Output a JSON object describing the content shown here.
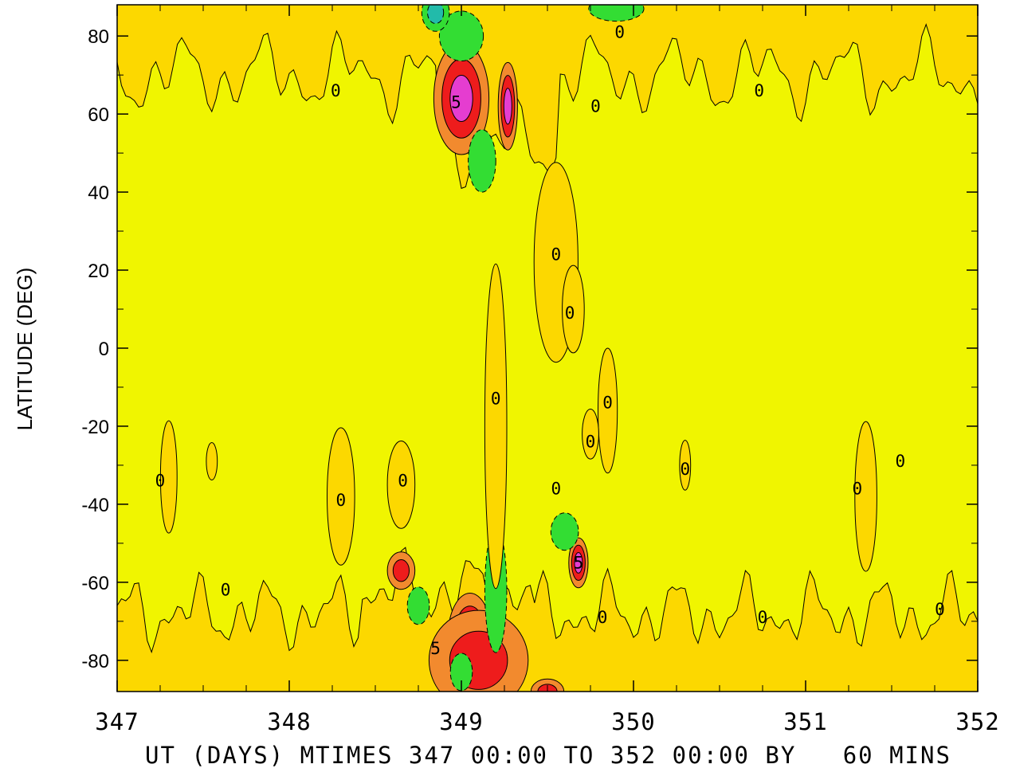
{
  "chart_data": {
    "type": "heatmap",
    "subtype": "filled-contour",
    "title": "",
    "xlabel": "UT (DAYS) MTIMES 347 00:00 TO 352 00:00 BY   60 MINS",
    "ylabel": "LATITUDE (DEG)",
    "xlim": [
      347,
      352
    ],
    "ylim": [
      -88,
      88
    ],
    "x_ticks": [
      347,
      348,
      349,
      350,
      351,
      352
    ],
    "y_ticks": [
      80,
      60,
      40,
      20,
      0,
      -20,
      -40,
      -60,
      -80
    ],
    "y_tick_labels": [
      "80",
      "60",
      "40",
      "20",
      "0",
      "-20",
      "-40",
      "-60",
      "-80"
    ],
    "x_tick_labels": [
      "347",
      "348",
      "349",
      "350",
      "351",
      "352"
    ],
    "background_level_color": "#f0f500",
    "contour_fill_colors": {
      "low_positive": "#fcd800",
      "mid_positive": "#f28a2e",
      "high_positive": "#ee1c1c",
      "peak_positive": "#e53dd0",
      "dark_core": "#8b0a28",
      "negative": "#33dd33",
      "strong_negative": "#22bbaa"
    },
    "contour_labels": [
      {
        "text": "0",
        "x": 347.25,
        "y": -34
      },
      {
        "text": "0",
        "x": 347.63,
        "y": -62
      },
      {
        "text": "0",
        "x": 348.3,
        "y": -39
      },
      {
        "text": "0",
        "x": 348.66,
        "y": -34
      },
      {
        "text": "0",
        "x": 349.92,
        "y": 81
      },
      {
        "text": "0",
        "x": 348.27,
        "y": 66
      },
      {
        "text": "5",
        "x": 348.97,
        "y": 63
      },
      {
        "text": "0",
        "x": 349.78,
        "y": 62
      },
      {
        "text": "0",
        "x": 350.73,
        "y": 66
      },
      {
        "text": "0",
        "x": 349.55,
        "y": 24
      },
      {
        "text": "0",
        "x": 349.63,
        "y": 9
      },
      {
        "text": "0",
        "x": 349.2,
        "y": -13
      },
      {
        "text": "0",
        "x": 349.85,
        "y": -14
      },
      {
        "text": "0",
        "x": 349.75,
        "y": -24
      },
      {
        "text": "0",
        "x": 350.3,
        "y": -31
      },
      {
        "text": "0",
        "x": 349.55,
        "y": -36
      },
      {
        "text": "5",
        "x": 349.68,
        "y": -55
      },
      {
        "text": "0",
        "x": 349.82,
        "y": -69
      },
      {
        "text": "5",
        "x": 348.85,
        "y": -77
      },
      {
        "text": "0",
        "x": 350.75,
        "y": -69
      },
      {
        "text": "0",
        "x": 351.3,
        "y": -36
      },
      {
        "text": "0",
        "x": 351.55,
        "y": -29
      },
      {
        "text": "0",
        "x": 351.78,
        "y": -67
      }
    ],
    "features": [
      {
        "sign": "positive",
        "level": 4,
        "x": 349.05,
        "y": 66,
        "sx": 0.045,
        "sy": 5
      },
      {
        "sign": "positive",
        "level": 4,
        "x": 349.15,
        "y": -81,
        "sx": 0.035,
        "sy": 3
      },
      {
        "sign": "positive",
        "level": 3,
        "x": 349.0,
        "y": 64,
        "sx": 0.1,
        "sy": 9
      },
      {
        "sign": "positive",
        "level": 3,
        "x": 349.27,
        "y": 62,
        "sx": 0.035,
        "sy": 7
      },
      {
        "sign": "positive",
        "level": 3,
        "x": 349.05,
        "y": -74,
        "sx": 0.08,
        "sy": 7
      },
      {
        "sign": "positive",
        "level": 3,
        "x": 349.68,
        "y": -55,
        "sx": 0.035,
        "sy": 4
      },
      {
        "sign": "positive",
        "level": 2,
        "x": 349.1,
        "y": -80,
        "sx": 0.18,
        "sy": 8
      },
      {
        "sign": "positive",
        "level": 2,
        "x": 348.65,
        "y": -57,
        "sx": 0.05,
        "sy": 3
      },
      {
        "sign": "positive",
        "level": 2,
        "x": 349.5,
        "y": -88,
        "sx": 0.06,
        "sy": 2
      },
      {
        "sign": "negative",
        "level": 1,
        "x": 349.2,
        "y": -62,
        "sx": 0.04,
        "sy": 10
      },
      {
        "sign": "negative",
        "level": 1,
        "x": 348.75,
        "y": -66,
        "sx": 0.04,
        "sy": 3
      },
      {
        "sign": "negative",
        "level": 1,
        "x": 349.6,
        "y": -47,
        "sx": 0.05,
        "sy": 3
      },
      {
        "sign": "negative",
        "level": 1,
        "x": 349.0,
        "y": -83,
        "sx": 0.04,
        "sy": 3
      },
      {
        "sign": "negative",
        "level": 1,
        "x": 349.0,
        "y": 80,
        "sx": 0.08,
        "sy": 4
      },
      {
        "sign": "negative",
        "level": 1,
        "x": 349.12,
        "y": 48,
        "sx": 0.05,
        "sy": 5
      },
      {
        "sign": "negative",
        "level": 2,
        "x": 348.85,
        "y": 86,
        "sx": 0.05,
        "sy": 3
      },
      {
        "sign": "negative",
        "level": 1,
        "x": 349.9,
        "y": 87,
        "sx": 0.1,
        "sy": 2
      },
      {
        "sign": "positive",
        "level": 1,
        "x": 349.55,
        "y": 22,
        "sx": 0.08,
        "sy": 16
      },
      {
        "sign": "positive",
        "level": 1,
        "x": 349.2,
        "y": -20,
        "sx": 0.04,
        "sy": 26
      },
      {
        "sign": "positive",
        "level": 1,
        "x": 349.85,
        "y": -16,
        "sx": 0.035,
        "sy": 10
      },
      {
        "sign": "positive",
        "level": 1,
        "x": 347.3,
        "y": -33,
        "sx": 0.03,
        "sy": 9
      },
      {
        "sign": "positive",
        "level": 1,
        "x": 347.55,
        "y": -29,
        "sx": 0.02,
        "sy": 3
      },
      {
        "sign": "positive",
        "level": 1,
        "x": 348.3,
        "y": -38,
        "sx": 0.05,
        "sy": 11
      },
      {
        "sign": "positive",
        "level": 1,
        "x": 348.65,
        "y": -35,
        "sx": 0.05,
        "sy": 7
      },
      {
        "sign": "positive",
        "level": 1,
        "x": 351.35,
        "y": -38,
        "sx": 0.04,
        "sy": 12
      },
      {
        "sign": "positive",
        "level": 1,
        "x": 349.65,
        "y": 10,
        "sx": 0.04,
        "sy": 7
      },
      {
        "sign": "positive",
        "level": 1,
        "x": 349.75,
        "y": -22,
        "sx": 0.03,
        "sy": 4
      },
      {
        "sign": "positive",
        "level": 1,
        "x": 350.3,
        "y": -30,
        "sx": 0.02,
        "sy": 4
      }
    ]
  }
}
